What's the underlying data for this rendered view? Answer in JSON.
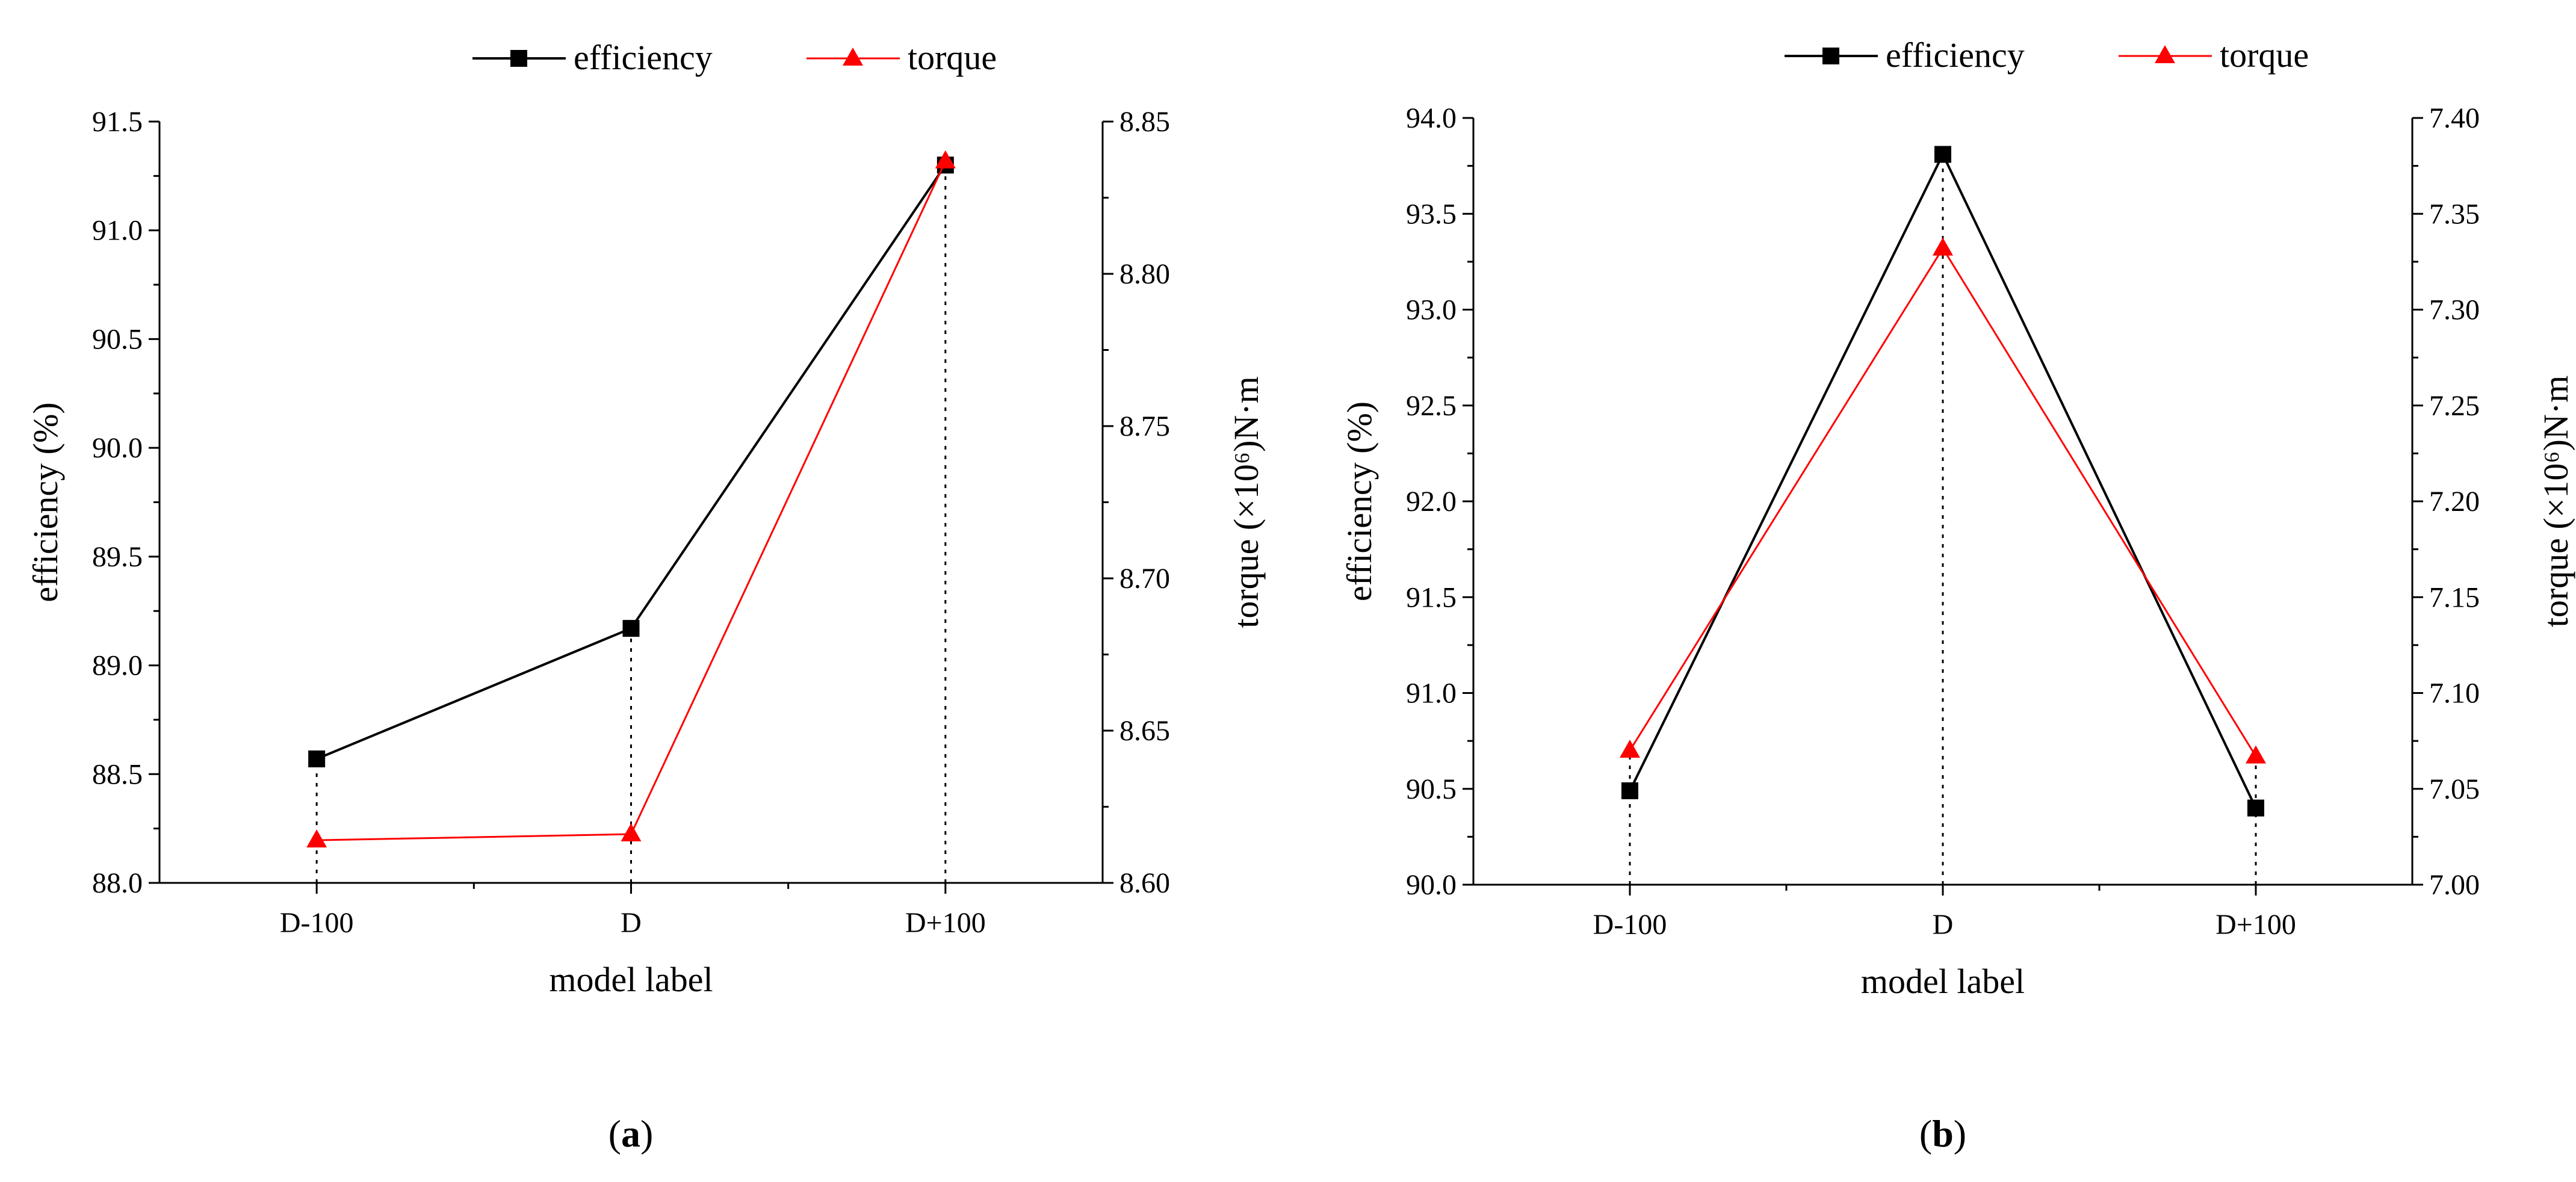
{
  "chart_data": [
    {
      "type": "line",
      "panel_label": "a",
      "categories": [
        "D-100",
        "D",
        "D+100"
      ],
      "xlabel": "model label",
      "ylabel": "efficiency (%)",
      "y2label": "torque (×10⁶)N·m",
      "ylim": [
        88.0,
        91.5
      ],
      "y2lim": [
        8.6,
        8.85
      ],
      "yticks": [
        "88.0",
        "88.5",
        "89.0",
        "89.5",
        "90.0",
        "90.5",
        "91.0",
        "91.5"
      ],
      "y2ticks": [
        "8.60",
        "8.65",
        "8.70",
        "8.75",
        "8.80",
        "8.85"
      ],
      "legend": [
        "efficiency",
        "torque"
      ],
      "legend_position": "top-center",
      "series": [
        {
          "name": "efficiency",
          "axis": "left",
          "color": "#000000",
          "marker": "square",
          "values": [
            88.57,
            89.17,
            91.3
          ]
        },
        {
          "name": "torque",
          "axis": "right",
          "color": "#ff0000",
          "marker": "triangle",
          "values": [
            8.614,
            8.616,
            8.837
          ]
        }
      ]
    },
    {
      "type": "line",
      "panel_label": "b",
      "categories": [
        "D-100",
        "D",
        "D+100"
      ],
      "xlabel": "model label",
      "ylabel": "efficiency (%)",
      "y2label": "torque (×10⁶)N·m",
      "ylim": [
        90.0,
        94.0
      ],
      "y2lim": [
        7.0,
        7.4
      ],
      "yticks": [
        "90.0",
        "90.5",
        "91.0",
        "91.5",
        "92.0",
        "92.5",
        "93.0",
        "93.5",
        "94.0"
      ],
      "y2ticks": [
        "7.00",
        "7.05",
        "7.10",
        "7.15",
        "7.20",
        "7.25",
        "7.30",
        "7.35",
        "7.40"
      ],
      "legend": [
        "efficiency",
        "torque"
      ],
      "legend_position": "top-center",
      "series": [
        {
          "name": "efficiency",
          "axis": "left",
          "color": "#000000",
          "marker": "square",
          "values": [
            90.49,
            93.81,
            90.4
          ]
        },
        {
          "name": "torque",
          "axis": "right",
          "color": "#ff0000",
          "marker": "triangle",
          "values": [
            7.07,
            7.332,
            7.067
          ]
        }
      ]
    }
  ]
}
